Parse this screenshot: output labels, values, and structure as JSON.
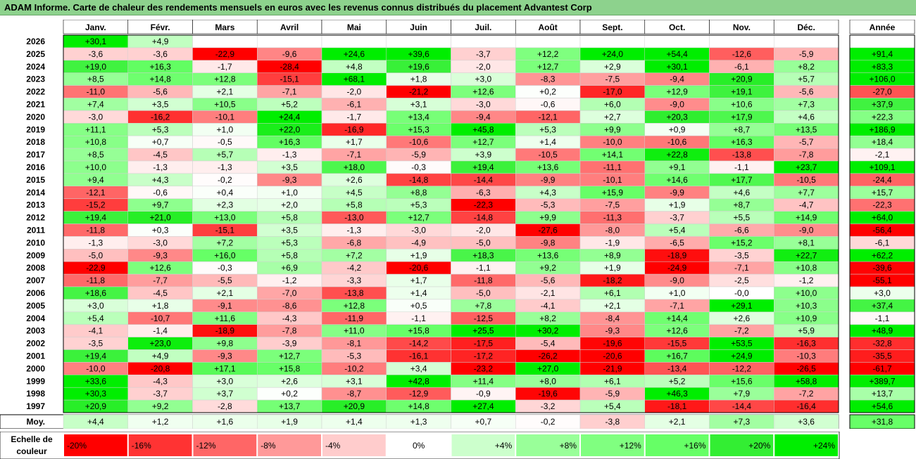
{
  "title": "ADAM Informe. Carte de chaleur des rendements mensuels en euros avec les revenus connus distribués du placement Advantest Corp",
  "chart_data": {
    "type": "heatmap",
    "months": [
      "Janv.",
      "Févr.",
      "Mars",
      "Avril",
      "Mai",
      "Juin",
      "Juil.",
      "Août",
      "Sept.",
      "Oct.",
      "Nov.",
      "Déc."
    ],
    "year_header": "Année",
    "rows": [
      {
        "year": "2026",
        "months": [
          "+30,1",
          "+4,9",
          "",
          "",
          "",
          "",
          "",
          "",
          "",
          "",
          "",
          ""
        ],
        "annual": ""
      },
      {
        "year": "2025",
        "months": [
          "-3,6",
          "-3,6",
          "-22,9",
          "-9,6",
          "+24,6",
          "+39,6",
          "-3,7",
          "+12,2",
          "+24,0",
          "+54,4",
          "-12,6",
          "-5,9"
        ],
        "annual": "+91,4"
      },
      {
        "year": "2024",
        "months": [
          "+19,0",
          "+16,3",
          "-1,7",
          "-28,4",
          "+4,8",
          "+19,6",
          "-2,0",
          "+12,7",
          "+2,9",
          "+30,1",
          "-6,1",
          "+8,2"
        ],
        "annual": "+83,3"
      },
      {
        "year": "2023",
        "months": [
          "+8,5",
          "+14,8",
          "+12,8",
          "-15,1",
          "+68,1",
          "+1,8",
          "+3,0",
          "-8,3",
          "-7,5",
          "-9,4",
          "+20,9",
          "+5,7"
        ],
        "annual": "+106,0"
      },
      {
        "year": "2022",
        "months": [
          "-11,0",
          "-5,6",
          "+2,1",
          "-7,1",
          "-2,0",
          "-21,2",
          "+12,6",
          "+0,2",
          "-17,0",
          "+12,9",
          "+19,1",
          "-5,6"
        ],
        "annual": "-27,0"
      },
      {
        "year": "2021",
        "months": [
          "+7,4",
          "+3,5",
          "+10,5",
          "+5,2",
          "-6,1",
          "+3,1",
          "-3,0",
          "-0,6",
          "+6,0",
          "-9,0",
          "+10,6",
          "+7,3"
        ],
        "annual": "+37,9"
      },
      {
        "year": "2020",
        "months": [
          "-3,0",
          "-16,2",
          "-10,1",
          "+24,4",
          "-1,7",
          "+13,4",
          "-9,4",
          "-12,1",
          "+2,7",
          "+20,3",
          "+17,9",
          "+4,6"
        ],
        "annual": "+22,3"
      },
      {
        "year": "2019",
        "months": [
          "+11,1",
          "+5,3",
          "+1,0",
          "+22,0",
          "-16,9",
          "+15,3",
          "+45,8",
          "+5,3",
          "+9,9",
          "+0,9",
          "+8,7",
          "+13,5"
        ],
        "annual": "+186,9"
      },
      {
        "year": "2018",
        "months": [
          "+10,8",
          "+0,7",
          "-0,5",
          "+16,3",
          "+1,7",
          "-10,6",
          "+12,7",
          "+1,4",
          "-10,0",
          "-10,6",
          "+16,3",
          "-5,7"
        ],
        "annual": "+18,4"
      },
      {
        "year": "2017",
        "months": [
          "+8,5",
          "-4,5",
          "+5,7",
          "-1,3",
          "-7,1",
          "-5,9",
          "+3,9",
          "-10,5",
          "+14,1",
          "+22,8",
          "-13,8",
          "-7,8"
        ],
        "annual": "-2,1"
      },
      {
        "year": "2016",
        "months": [
          "+10,0",
          "-1,3",
          "-1,3",
          "+3,5",
          "+18,0",
          "-0,3",
          "+19,4",
          "+13,6",
          "-11,1",
          "+9,1",
          "-1,1",
          "+23,7"
        ],
        "annual": "+109,1"
      },
      {
        "year": "2015",
        "months": [
          "+9,4",
          "+4,3",
          "-0,2",
          "-9,3",
          "+2,6",
          "-14,8",
          "-14,4",
          "-9,9",
          "-10,1",
          "+14,6",
          "+17,7",
          "-10,5"
        ],
        "annual": "-24,4"
      },
      {
        "year": "2014",
        "months": [
          "-12,1",
          "-0,6",
          "+0,4",
          "+1,0",
          "+4,5",
          "+8,8",
          "-6,3",
          "+4,3",
          "+15,9",
          "-9,9",
          "+4,6",
          "+7,7"
        ],
        "annual": "+15,7"
      },
      {
        "year": "2013",
        "months": [
          "-15,2",
          "+9,7",
          "+2,3",
          "+2,0",
          "+5,8",
          "+5,3",
          "-22,3",
          "-5,3",
          "-7,5",
          "+1,9",
          "+8,7",
          "-4,7"
        ],
        "annual": "-22,3"
      },
      {
        "year": "2012",
        "months": [
          "+19,4",
          "+21,0",
          "+13,0",
          "+5,8",
          "-13,0",
          "+12,7",
          "-14,8",
          "+9,9",
          "-11,3",
          "-3,7",
          "+5,5",
          "+14,9"
        ],
        "annual": "+64,0"
      },
      {
        "year": "2011",
        "months": [
          "-11,8",
          "+0,3",
          "-15,1",
          "+3,5",
          "-1,3",
          "-3,0",
          "-2,0",
          "-27,6",
          "-8,0",
          "+5,4",
          "-6,6",
          "-9,0"
        ],
        "annual": "-56,4"
      },
      {
        "year": "2010",
        "months": [
          "-1,3",
          "-3,0",
          "+7,2",
          "+5,3",
          "-6,8",
          "-4,9",
          "-5,0",
          "-9,8",
          "-1,9",
          "-6,5",
          "+15,2",
          "+8,1"
        ],
        "annual": "-6,1"
      },
      {
        "year": "2009",
        "months": [
          "-5,0",
          "-9,3",
          "+16,0",
          "+5,8",
          "+7,2",
          "+1,9",
          "+18,3",
          "+13,6",
          "+8,9",
          "-18,9",
          "-3,5",
          "+22,7"
        ],
        "annual": "+62,2"
      },
      {
        "year": "2008",
        "months": [
          "-22,9",
          "+12,6",
          "-0,3",
          "+6,9",
          "-4,2",
          "-20,6",
          "-1,1",
          "+9,2",
          "+1,9",
          "-24,9",
          "-7,1",
          "+10,8"
        ],
        "annual": "-39,6"
      },
      {
        "year": "2007",
        "months": [
          "-11,8",
          "-7,7",
          "-5,5",
          "-1,2",
          "-3,3",
          "+1,7",
          "-11,8",
          "-5,6",
          "-18,2",
          "-9,0",
          "-2,5",
          "-1,2"
        ],
        "annual": "-55,1"
      },
      {
        "year": "2006",
        "months": [
          "+18,6",
          "-4,5",
          "+2,1",
          "-7,0",
          "-13,8",
          "+1,4",
          "-5,0",
          "-2,1",
          "+6,1",
          "+1,0",
          "-0,0",
          "+10,0"
        ],
        "annual": "+3,0"
      },
      {
        "year": "2005",
        "months": [
          "+3,0",
          "+1,8",
          "-9,1",
          "-8,6",
          "+12,8",
          "+0,5",
          "+7,8",
          "-4,1",
          "+2,1",
          "-7,1",
          "+29,1",
          "+10,3"
        ],
        "annual": "+37,4"
      },
      {
        "year": "2004",
        "months": [
          "+5,4",
          "-10,7",
          "+11,6",
          "-4,3",
          "-11,9",
          "-1,1",
          "-12,5",
          "+8,2",
          "-8,4",
          "+14,4",
          "+2,6",
          "+10,9"
        ],
        "annual": "-1,1"
      },
      {
        "year": "2003",
        "months": [
          "-4,1",
          "-1,4",
          "-18,9",
          "-7,8",
          "+11,0",
          "+15,8",
          "+25,5",
          "+30,2",
          "-9,3",
          "+12,6",
          "-7,2",
          "+5,9"
        ],
        "annual": "+48,9"
      },
      {
        "year": "2002",
        "months": [
          "-3,5",
          "+23,0",
          "+9,8",
          "-3,9",
          "-8,1",
          "-14,2",
          "-17,5",
          "-5,4",
          "-19,6",
          "-15,5",
          "+53,5",
          "-16,3"
        ],
        "annual": "-32,8"
      },
      {
        "year": "2001",
        "months": [
          "+19,4",
          "+4,9",
          "-9,3",
          "+12,7",
          "-5,3",
          "-16,1",
          "-17,2",
          "-26,2",
          "-20,6",
          "+16,7",
          "+24,9",
          "-10,3"
        ],
        "annual": "-35,5"
      },
      {
        "year": "2000",
        "months": [
          "-10,0",
          "-20,8",
          "+17,1",
          "+15,8",
          "-10,2",
          "+3,4",
          "-23,2",
          "+27,0",
          "-21,9",
          "-13,4",
          "-12,2",
          "-26,5"
        ],
        "annual": "-61,7"
      },
      {
        "year": "1999",
        "months": [
          "+33,6",
          "-4,3",
          "+3,0",
          "+2,6",
          "+3,1",
          "+42,8",
          "+11,4",
          "+8,0",
          "+6,1",
          "+5,2",
          "+15,6",
          "+58,8"
        ],
        "annual": "+389,7"
      },
      {
        "year": "1998",
        "months": [
          "+30,3",
          "-3,7",
          "+3,7",
          "+0,2",
          "-8,7",
          "-12,9",
          "-0,9",
          "-19,6",
          "-5,9",
          "+46,3",
          "+7,9",
          "-7,2"
        ],
        "annual": "+13,7"
      },
      {
        "year": "1997",
        "months": [
          "+20,9",
          "+9,2",
          "-2,8",
          "+13,7",
          "+20,9",
          "+14,8",
          "+27,4",
          "-3,2",
          "+5,4",
          "-18,1",
          "-14,4",
          "-16,4"
        ],
        "annual": "+54,6"
      }
    ],
    "average": {
      "label": "Moy.",
      "months": [
        "+4,4",
        "+1,2",
        "+1,6",
        "+1,9",
        "+1,4",
        "+1,3",
        "+0,7",
        "-0,2",
        "-3,8",
        "+2,1",
        "+7,3",
        "+3,6"
      ],
      "annual": "+31,8"
    },
    "color_scale": {
      "label_line1": "Echelle de",
      "label_line2": "couleur",
      "steps": [
        {
          "label": "-20%",
          "value": -20,
          "color": "#ff0000"
        },
        {
          "label": "-16%",
          "value": -16,
          "color": "#ff3333"
        },
        {
          "label": "-12%",
          "value": -12,
          "color": "#ff6666"
        },
        {
          "label": "-8%",
          "value": -8,
          "color": "#ff9999"
        },
        {
          "label": "-4%",
          "value": -4,
          "color": "#ffcccc"
        },
        {
          "label": "0%",
          "value": 0,
          "color": "#ffffff"
        },
        {
          "label": "+4%",
          "value": 4,
          "color": "#ccffcc"
        },
        {
          "label": "+8%",
          "value": 8,
          "color": "#99ff99"
        },
        {
          "label": "+12%",
          "value": 12,
          "color": "#80ff80"
        },
        {
          "label": "+16%",
          "value": 16,
          "color": "#66ff66"
        },
        {
          "label": "+20%",
          "value": 20,
          "color": "#33ee33"
        },
        {
          "label": "+24%",
          "value": 24,
          "color": "#00ee00"
        }
      ]
    }
  }
}
